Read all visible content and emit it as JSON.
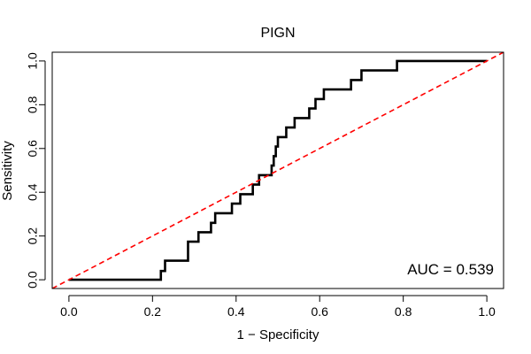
{
  "chart_data": {
    "type": "line",
    "title": "PIGN",
    "xlabel": "1 − Specificity",
    "ylabel": "Sensitivity",
    "xlim": [
      -0.04,
      1.04
    ],
    "ylim": [
      -0.04,
      1.04
    ],
    "x_ticks": [
      0.0,
      0.2,
      0.4,
      0.6,
      0.8,
      1.0
    ],
    "x_tick_labels": [
      "0.0",
      "0.2",
      "0.4",
      "0.6",
      "0.8",
      "1.0"
    ],
    "y_ticks": [
      0.0,
      0.2,
      0.4,
      0.6,
      0.8,
      1.0
    ],
    "y_tick_labels": [
      "0.0",
      "0.2",
      "0.4",
      "0.6",
      "0.8",
      "1.0"
    ],
    "annotation": "AUC = 0.539",
    "grid": false,
    "series": [
      {
        "style": "step",
        "color": "#000000",
        "points": [
          [
            0.0,
            0.0
          ],
          [
            0.22,
            0.0
          ],
          [
            0.22,
            0.04
          ],
          [
            0.23,
            0.04
          ],
          [
            0.23,
            0.087
          ],
          [
            0.285,
            0.087
          ],
          [
            0.285,
            0.174
          ],
          [
            0.31,
            0.174
          ],
          [
            0.31,
            0.217
          ],
          [
            0.34,
            0.217
          ],
          [
            0.34,
            0.26
          ],
          [
            0.35,
            0.26
          ],
          [
            0.35,
            0.304
          ],
          [
            0.39,
            0.304
          ],
          [
            0.39,
            0.348
          ],
          [
            0.41,
            0.348
          ],
          [
            0.41,
            0.391
          ],
          [
            0.44,
            0.391
          ],
          [
            0.44,
            0.435
          ],
          [
            0.455,
            0.435
          ],
          [
            0.455,
            0.478
          ],
          [
            0.485,
            0.478
          ],
          [
            0.485,
            0.522
          ],
          [
            0.49,
            0.522
          ],
          [
            0.49,
            0.565
          ],
          [
            0.495,
            0.565
          ],
          [
            0.495,
            0.609
          ],
          [
            0.5,
            0.609
          ],
          [
            0.5,
            0.652
          ],
          [
            0.52,
            0.652
          ],
          [
            0.52,
            0.696
          ],
          [
            0.54,
            0.696
          ],
          [
            0.54,
            0.739
          ],
          [
            0.575,
            0.739
          ],
          [
            0.575,
            0.783
          ],
          [
            0.59,
            0.783
          ],
          [
            0.59,
            0.826
          ],
          [
            0.61,
            0.826
          ],
          [
            0.61,
            0.87
          ],
          [
            0.675,
            0.87
          ],
          [
            0.675,
            0.913
          ],
          [
            0.7,
            0.913
          ],
          [
            0.7,
            0.957
          ],
          [
            0.785,
            0.957
          ],
          [
            0.785,
            1.0
          ],
          [
            1.0,
            1.0
          ]
        ]
      },
      {
        "style": "dashed",
        "color": "#ff0000",
        "points": [
          [
            -0.04,
            -0.04
          ],
          [
            1.04,
            1.04
          ]
        ]
      }
    ]
  }
}
